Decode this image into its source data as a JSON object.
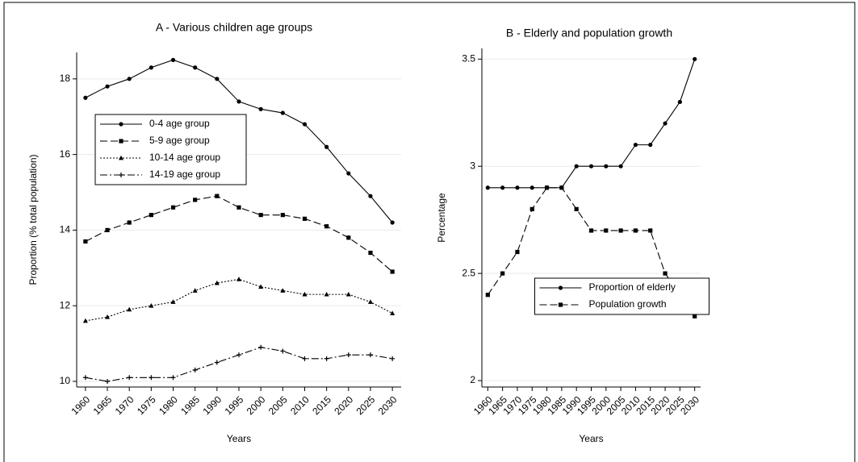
{
  "chart_data": [
    {
      "type": "line",
      "title": "A - Various children age groups",
      "xlabel": "Years",
      "ylabel": "Proportion (% total population)",
      "x": [
        1960,
        1965,
        1970,
        1975,
        1980,
        1985,
        1990,
        1995,
        2000,
        2005,
        2010,
        2015,
        2020,
        2025,
        2030
      ],
      "xlim": [
        1958,
        2032
      ],
      "xticks": [
        1960,
        1965,
        1970,
        1975,
        1980,
        1985,
        1990,
        1995,
        2000,
        2005,
        2010,
        2015,
        2020,
        2025,
        2030
      ],
      "ylim": [
        9.85,
        18.7
      ],
      "yticks": [
        10,
        12,
        14,
        16,
        18
      ],
      "grid": true,
      "legend": "center left",
      "series": [
        {
          "name": "0-4 age group",
          "color": "#000000",
          "marker": "circle",
          "dash": "solid",
          "values": [
            17.5,
            17.8,
            18.0,
            18.3,
            18.5,
            18.3,
            18.0,
            17.4,
            17.2,
            17.1,
            16.8,
            16.2,
            15.5,
            14.9,
            14.2
          ]
        },
        {
          "name": "5-9 age group",
          "color": "#000000",
          "marker": "square",
          "dash": "dashed",
          "values": [
            13.7,
            14.0,
            14.2,
            14.4,
            14.6,
            14.8,
            14.9,
            14.6,
            14.4,
            14.4,
            14.3,
            14.1,
            13.8,
            13.4,
            12.9
          ]
        },
        {
          "name": "10-14 age group",
          "color": "#000000",
          "marker": "triangle",
          "dash": "dotted",
          "values": [
            11.6,
            11.7,
            11.9,
            12.0,
            12.1,
            12.4,
            12.6,
            12.7,
            12.5,
            12.4,
            12.3,
            12.3,
            12.3,
            12.1,
            11.8
          ]
        },
        {
          "name": "14-19 age group",
          "color": "#000000",
          "marker": "plus",
          "dash": "dashdot",
          "values": [
            10.1,
            10.0,
            10.1,
            10.1,
            10.1,
            10.3,
            10.5,
            10.7,
            10.9,
            10.8,
            10.6,
            10.6,
            10.7,
            10.7,
            10.6
          ]
        }
      ]
    },
    {
      "type": "line",
      "title": "B - Elderly and population growth",
      "xlabel": "Years",
      "ylabel": "Percentage",
      "x": [
        1960,
        1965,
        1970,
        1975,
        1980,
        1985,
        1990,
        1995,
        2000,
        2005,
        2010,
        2015,
        2020,
        2025,
        2030
      ],
      "xlim": [
        1958,
        2032
      ],
      "xticks": [
        1960,
        1965,
        1970,
        1975,
        1980,
        1985,
        1990,
        1995,
        2000,
        2005,
        2010,
        2015,
        2020,
        2025,
        2030
      ],
      "ylim": [
        1.97,
        3.55
      ],
      "yticks": [
        2,
        2.5,
        3,
        3.5
      ],
      "grid": true,
      "legend": "lower center",
      "series": [
        {
          "name": "Proportion of elderly",
          "color": "#000000",
          "marker": "circle",
          "dash": "solid",
          "values": [
            2.9,
            2.9,
            2.9,
            2.9,
            2.9,
            2.9,
            3.0,
            3.0,
            3.0,
            3.0,
            3.1,
            3.1,
            3.2,
            3.3,
            3.5
          ]
        },
        {
          "name": "Population growth",
          "color": "#000000",
          "marker": "square",
          "dash": "dashed",
          "values": [
            2.4,
            2.5,
            2.6,
            2.8,
            2.9,
            2.9,
            2.8,
            2.7,
            2.7,
            2.7,
            2.7,
            2.7,
            2.5,
            2.4,
            2.3
          ]
        }
      ]
    }
  ]
}
